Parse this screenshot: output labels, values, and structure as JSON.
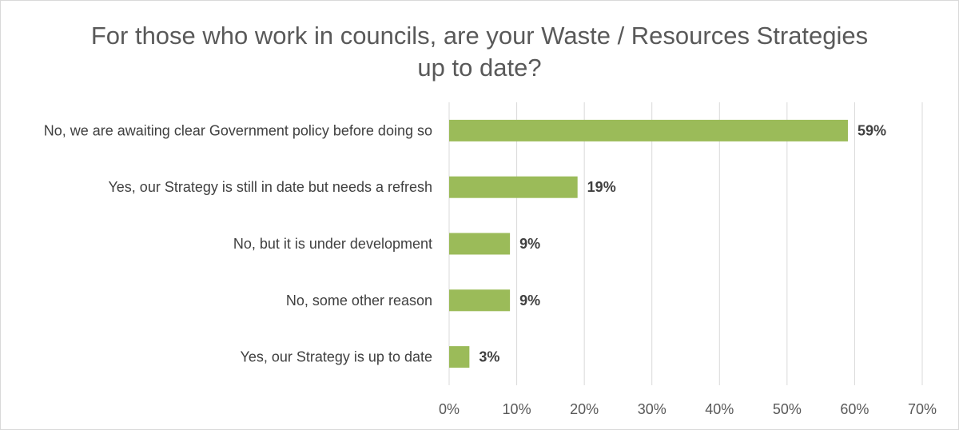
{
  "chart_data": {
    "type": "bar",
    "orientation": "horizontal",
    "title_lines": [
      "For those who work in councils, are your Waste / Resources Strategies",
      "up to date?"
    ],
    "categories": [
      "No, we are awaiting clear Government policy before doing so",
      "Yes, our Strategy is still in date but needs a refresh",
      "No, but it is under development",
      "No, some other reason",
      "Yes, our Strategy is up to date"
    ],
    "values": [
      59,
      19,
      9,
      9,
      3
    ],
    "data_labels": [
      "59%",
      "19%",
      "9%",
      "9%",
      "3%"
    ],
    "x_ticks": [
      0,
      10,
      20,
      30,
      40,
      50,
      60,
      70
    ],
    "x_tick_labels": [
      "0%",
      "10%",
      "20%",
      "30%",
      "40%",
      "50%",
      "60%",
      "70%"
    ],
    "xlim": [
      0,
      70
    ],
    "grid": true,
    "legend": "none",
    "bar_color": "#9bbb59",
    "gridline_color": "#d9d9d9"
  }
}
